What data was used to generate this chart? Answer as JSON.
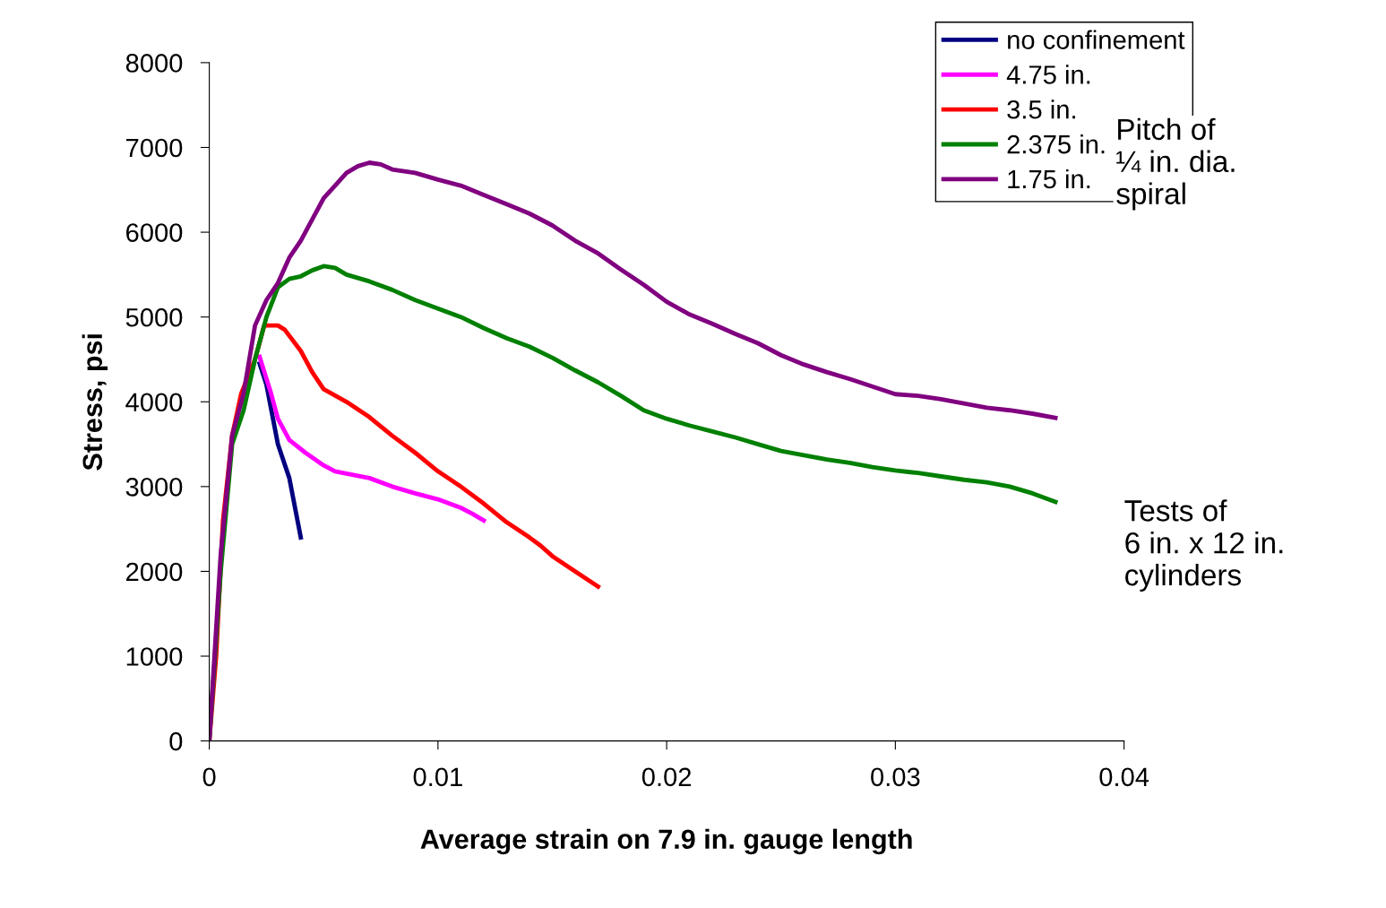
{
  "chart_data": {
    "type": "line",
    "xlabel": "Average strain on 7.9 in. gauge length",
    "ylabel": "Stress, psi",
    "xlim": [
      0,
      0.04
    ],
    "xticks": [
      0,
      0.01,
      0.02,
      0.03,
      0.04
    ],
    "ylim": [
      0,
      8000
    ],
    "yticks": [
      0,
      1000,
      2000,
      3000,
      4000,
      5000,
      6000,
      7000,
      8000
    ],
    "grid": false,
    "legend": "top right",
    "marker": "none",
    "line_style": "solid",
    "annotations": [
      "Pitch of\n¼ in. dia.\nspiral",
      "Tests of\n6 in. x 12 in.\ncylinders"
    ],
    "series": [
      {
        "name": "no confinement",
        "color": "#000080",
        "x": [
          0.0022,
          0.0025,
          0.003,
          0.0035,
          0.004
        ],
        "values": [
          4450,
          4200,
          3500,
          3100,
          2400
        ]
      },
      {
        "name": "4.75 in.",
        "color": "#ff00ff",
        "x": [
          0.0022,
          0.0027,
          0.003,
          0.0035,
          0.0042,
          0.005,
          0.0055,
          0.007,
          0.008,
          0.009,
          0.01,
          0.011,
          0.0115,
          0.012
        ],
        "values": [
          4530,
          4100,
          3800,
          3550,
          3400,
          3250,
          3180,
          3100,
          3000,
          2920,
          2850,
          2750,
          2680,
          2600
        ]
      },
      {
        "name": "3.5 in.",
        "color": "#ff0000",
        "x": [
          0,
          0.0003,
          0.0006,
          0.001,
          0.0014,
          0.002,
          0.0024,
          0.003,
          0.0033,
          0.004,
          0.0045,
          0.005,
          0.006,
          0.007,
          0.008,
          0.009,
          0.01,
          0.011,
          0.012,
          0.013,
          0.014,
          0.0145,
          0.015,
          0.016,
          0.017
        ],
        "values": [
          0,
          1000,
          2600,
          3600,
          4100,
          4500,
          4900,
          4900,
          4850,
          4600,
          4350,
          4150,
          4000,
          3820,
          3600,
          3400,
          3180,
          3000,
          2800,
          2580,
          2400,
          2300,
          2180,
          2000,
          1820
        ]
      },
      {
        "name": "2.375 in.",
        "color": "#008000",
        "x": [
          0,
          0.0005,
          0.001,
          0.0015,
          0.002,
          0.0025,
          0.003,
          0.0035,
          0.004,
          0.0045,
          0.005,
          0.0055,
          0.006,
          0.007,
          0.008,
          0.009,
          0.01,
          0.011,
          0.012,
          0.013,
          0.014,
          0.015,
          0.016,
          0.017,
          0.018,
          0.019,
          0.02,
          0.021,
          0.022,
          0.023,
          0.024,
          0.025,
          0.026,
          0.027,
          0.028,
          0.029,
          0.03,
          0.031,
          0.032,
          0.033,
          0.034,
          0.035,
          0.036,
          0.037
        ],
        "values": [
          0,
          2000,
          3500,
          3900,
          4500,
          5000,
          5350,
          5450,
          5480,
          5550,
          5600,
          5580,
          5500,
          5420,
          5320,
          5200,
          5100,
          5000,
          4870,
          4750,
          4650,
          4520,
          4370,
          4230,
          4070,
          3900,
          3800,
          3720,
          3650,
          3580,
          3500,
          3420,
          3370,
          3320,
          3280,
          3230,
          3190,
          3160,
          3120,
          3080,
          3050,
          3000,
          2920,
          2820
        ]
      },
      {
        "name": "1.75 in.",
        "color": "#800080",
        "x": [
          0,
          0.0005,
          0.001,
          0.0015,
          0.002,
          0.0025,
          0.003,
          0.0035,
          0.004,
          0.0045,
          0.005,
          0.0055,
          0.006,
          0.0065,
          0.007,
          0.0075,
          0.008,
          0.009,
          0.01,
          0.011,
          0.012,
          0.013,
          0.014,
          0.015,
          0.016,
          0.017,
          0.018,
          0.019,
          0.02,
          0.021,
          0.022,
          0.023,
          0.024,
          0.025,
          0.026,
          0.027,
          0.028,
          0.029,
          0.03,
          0.031,
          0.032,
          0.033,
          0.034,
          0.035,
          0.036,
          0.037
        ],
        "values": [
          0,
          2200,
          3600,
          4100,
          4900,
          5200,
          5400,
          5700,
          5900,
          6150,
          6400,
          6550,
          6700,
          6780,
          6820,
          6800,
          6740,
          6700,
          6620,
          6550,
          6440,
          6330,
          6220,
          6080,
          5900,
          5750,
          5560,
          5380,
          5180,
          5030,
          4920,
          4800,
          4690,
          4550,
          4440,
          4350,
          4270,
          4180,
          4090,
          4070,
          4030,
          3980,
          3930,
          3900,
          3860,
          3810
        ]
      }
    ]
  }
}
